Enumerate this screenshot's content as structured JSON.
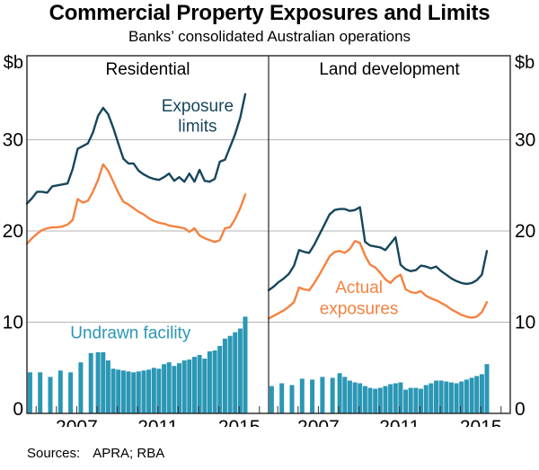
{
  "title": "Commercial Property Exposures and Limits",
  "subtitle": "Banks’ consolidated Australian operations",
  "footer": {
    "sources_label": "Sources:",
    "sources_value": "APRA; RBA"
  },
  "chart_data": {
    "type": "line+bar, two panels",
    "unit": "$b",
    "colors": {
      "limits": "#17465c",
      "exposures": "#f58240",
      "undrawn": "#2b97b5",
      "grid": "#b5b5b5",
      "frame": "#262626",
      "text": "#000000"
    },
    "y_axis": {
      "label": "$b",
      "ticks": [
        0,
        10,
        20,
        30
      ],
      "gridlines": [
        10,
        20,
        30
      ],
      "domain": [
        0,
        39.2
      ],
      "shown_both_sides": true
    },
    "x_axis": {
      "labeled_ticks": [
        2007,
        2011,
        2015
      ],
      "minor_tick_every_year": true,
      "domain": [
        2004.55,
        2016.45
      ]
    },
    "line_x_start": 2004.55,
    "line_x_step": 0.25,
    "bar_x": [
      2004.7,
      2005.2,
      2005.7,
      2006.2,
      2006.7,
      2007.2,
      2007.7,
      2008.05,
      2008.3,
      2008.55,
      2008.8,
      2009.05,
      2009.3,
      2009.55,
      2009.8,
      2010.05,
      2010.3,
      2010.55,
      2010.8,
      2011.05,
      2011.3,
      2011.55,
      2011.8,
      2012.05,
      2012.3,
      2012.55,
      2012.8,
      2013.05,
      2013.3,
      2013.55,
      2013.8,
      2014.05,
      2014.3,
      2014.55,
      2014.8,
      2015.05,
      2015.3
    ],
    "panels": [
      {
        "title": "Residential",
        "series": [
          {
            "name": "Exposure limits",
            "type": "line",
            "color": "#17465c",
            "values": [
              23.0,
              23.6,
              24.3,
              24.3,
              24.2,
              24.9,
              25.0,
              25.1,
              25.2,
              26.8,
              29.0,
              29.3,
              29.6,
              30.8,
              32.6,
              33.5,
              32.8,
              31.3,
              29.6,
              27.9,
              27.4,
              27.4,
              26.6,
              26.2,
              25.9,
              25.7,
              25.6,
              25.9,
              26.3,
              25.5,
              25.9,
              25.4,
              26.3,
              25.4,
              26.7,
              25.5,
              25.4,
              25.7,
              27.6,
              27.8,
              29.2,
              30.6,
              32.4,
              35.0
            ]
          },
          {
            "name": "Actual exposures",
            "type": "line",
            "color": "#f58240",
            "values": [
              18.6,
              19.2,
              19.7,
              20.1,
              20.3,
              20.4,
              20.4,
              20.5,
              20.7,
              21.2,
              23.5,
              23.1,
              23.3,
              24.3,
              25.6,
              27.3,
              26.6,
              25.4,
              24.2,
              23.2,
              22.9,
              22.5,
              22.1,
              21.8,
              21.4,
              21.1,
              20.9,
              20.8,
              20.6,
              20.5,
              20.4,
              20.3,
              19.9,
              20.3,
              19.5,
              19.2,
              19.0,
              18.8,
              19.0,
              20.3,
              20.4,
              21.3,
              22.5,
              24.0
            ]
          },
          {
            "name": "Undrawn facility",
            "type": "bar",
            "color": "#2b97b5",
            "values": [
              4.5,
              4.5,
              4.0,
              4.7,
              4.5,
              5.6,
              6.6,
              6.7,
              6.7,
              5.8,
              4.9,
              4.8,
              4.7,
              4.6,
              4.5,
              4.6,
              4.7,
              4.8,
              5.0,
              4.9,
              5.4,
              5.6,
              5.2,
              5.5,
              5.8,
              5.9,
              6.2,
              6.4,
              6.0,
              6.8,
              6.9,
              7.4,
              8.2,
              8.5,
              8.9,
              9.3,
              10.6
            ]
          }
        ],
        "annotations": [
          {
            "name": "exposure-limits-label",
            "lines": [
              "Exposure",
              "limits"
            ],
            "color": "#17465c",
            "x": 2012.95,
            "y": [
              33.8,
              31.6
            ]
          },
          {
            "name": "undrawn-facility-label",
            "lines": [
              "Undrawn facility"
            ],
            "color": "#2b97b5",
            "x": 2009.65,
            "y": [
              8.9
            ]
          }
        ]
      },
      {
        "title": "Land development",
        "series": [
          {
            "name": "Exposure limits",
            "type": "line",
            "color": "#17465c",
            "values": [
              13.5,
              13.9,
              14.4,
              14.8,
              15.3,
              16.2,
              17.9,
              17.7,
              17.6,
              18.5,
              19.6,
              20.7,
              21.8,
              22.3,
              22.4,
              22.4,
              22.2,
              22.3,
              22.6,
              18.8,
              18.4,
              18.3,
              18.2,
              17.9,
              18.6,
              19.3,
              16.3,
              15.8,
              15.6,
              15.7,
              16.2,
              16.1,
              15.9,
              16.1,
              15.6,
              15.2,
              14.8,
              14.5,
              14.3,
              14.2,
              14.3,
              14.6,
              15.2,
              17.8
            ]
          },
          {
            "name": "Actual exposures",
            "type": "line",
            "color": "#f58240",
            "values": [
              10.4,
              10.7,
              11.0,
              11.3,
              11.7,
              12.2,
              13.8,
              13.6,
              13.5,
              14.3,
              15.2,
              16.2,
              17.2,
              17.7,
              17.8,
              17.6,
              18.0,
              18.9,
              18.7,
              17.3,
              16.3,
              16.0,
              15.4,
              14.7,
              14.3,
              14.9,
              15.2,
              13.6,
              13.3,
              13.2,
              13.4,
              12.9,
              12.6,
              12.4,
              12.1,
              11.8,
              11.4,
              11.1,
              10.8,
              10.6,
              10.5,
              10.6,
              11.1,
              12.2
            ]
          },
          {
            "name": "Undrawn facility",
            "type": "bar",
            "color": "#2b97b5",
            "values": [
              3.0,
              3.3,
              3.1,
              3.8,
              3.7,
              4.0,
              3.9,
              4.4,
              4.0,
              3.6,
              3.4,
              3.3,
              3.0,
              2.8,
              2.7,
              2.8,
              3.0,
              3.2,
              3.3,
              3.4,
              2.6,
              2.8,
              2.8,
              2.7,
              3.1,
              3.3,
              3.6,
              3.6,
              3.5,
              3.4,
              3.3,
              3.5,
              3.7,
              3.9,
              4.1,
              4.3,
              5.4
            ]
          }
        ],
        "annotations": [
          {
            "name": "actual-exposures-label",
            "lines": [
              "Actual",
              "exposures"
            ],
            "color": "#f58240",
            "x": 2009.0,
            "y": [
              13.9,
              11.6
            ]
          }
        ]
      }
    ]
  }
}
